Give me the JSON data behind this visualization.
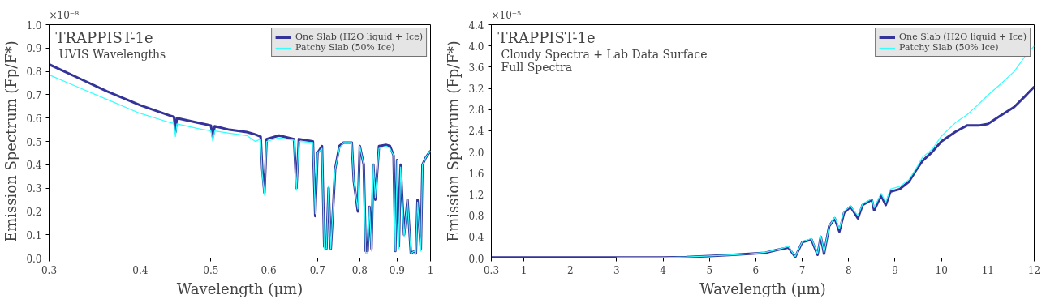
{
  "chart_data": [
    {
      "type": "line",
      "title": "TRAPPIST-1e",
      "subtitle": "UVIS Wavelengths",
      "xlabel": "Wavelength (µm)",
      "ylabel": "Emission Spectrum (Fp/F*)",
      "annotations": [
        "×10⁻⁸"
      ],
      "log": "x",
      "grid": false,
      "legend": "top right",
      "marker": "none",
      "line_style": "solid",
      "xlim": [
        0.3,
        1
      ],
      "xticks": [
        0.3,
        0.4,
        0.5,
        0.6,
        0.7,
        0.8,
        0.9,
        1
      ],
      "ylim": [
        0,
        1
      ],
      "yticks": [
        {
          "value": 0,
          "label": "0.0"
        },
        0.1,
        0.2,
        0.3,
        0.4,
        0.5,
        0.6,
        0.7,
        0.8,
        0.9,
        {
          "value": 1,
          "label": "1.0"
        }
      ],
      "x": [
        0.3,
        0.33,
        0.36,
        0.4,
        0.44,
        0.445,
        0.447,
        0.449,
        0.48,
        0.5,
        0.503,
        0.506,
        0.53,
        0.56,
        0.575,
        0.585,
        0.588,
        0.592,
        0.596,
        0.62,
        0.65,
        0.655,
        0.66,
        0.69,
        0.695,
        0.7,
        0.71,
        0.715,
        0.72,
        0.725,
        0.73,
        0.735,
        0.74,
        0.75,
        0.76,
        0.78,
        0.785,
        0.795,
        0.8,
        0.81,
        0.815,
        0.82,
        0.825,
        0.83,
        0.835,
        0.84,
        0.85,
        0.87,
        0.88,
        0.89,
        0.895,
        0.9,
        0.905,
        0.91,
        0.92,
        0.93,
        0.94,
        0.95,
        0.955,
        0.96,
        0.97,
        0.975,
        0.985,
        1.0
      ],
      "series": [
        {
          "name": "One Slab (H2O liquid + Ice)",
          "color": "#333399",
          "values": [
            0.83,
            0.77,
            0.715,
            0.655,
            0.61,
            0.605,
            0.54,
            0.6,
            0.58,
            0.568,
            0.52,
            0.565,
            0.55,
            0.54,
            0.53,
            0.52,
            0.38,
            0.28,
            0.51,
            0.525,
            0.51,
            0.3,
            0.51,
            0.5,
            0.18,
            0.45,
            0.48,
            0.05,
            0.04,
            0.3,
            0.04,
            0.2,
            0.38,
            0.48,
            0.495,
            0.495,
            0.33,
            0.2,
            0.48,
            0.4,
            0.03,
            0.03,
            0.22,
            0.04,
            0.4,
            0.25,
            0.48,
            0.485,
            0.48,
            0.44,
            0.03,
            0.42,
            0.05,
            0.4,
            0.1,
            0.25,
            0.02,
            0.03,
            0.02,
            0.25,
            0.04,
            0.4,
            0.43,
            0.46
          ]
        },
        {
          "name": "Patchy Slab (50% Ice)",
          "color": "#33ffff",
          "values": [
            0.785,
            0.73,
            0.68,
            0.62,
            0.58,
            0.578,
            0.52,
            0.575,
            0.555,
            0.545,
            0.5,
            0.545,
            0.535,
            0.525,
            0.5,
            0.51,
            0.36,
            0.27,
            0.5,
            0.515,
            0.505,
            0.29,
            0.5,
            0.495,
            0.19,
            0.45,
            0.47,
            0.04,
            0.04,
            0.31,
            0.04,
            0.21,
            0.38,
            0.47,
            0.495,
            0.495,
            0.33,
            0.21,
            0.48,
            0.4,
            0.02,
            0.02,
            0.22,
            0.03,
            0.4,
            0.26,
            0.47,
            0.48,
            0.47,
            0.44,
            0.03,
            0.42,
            0.04,
            0.39,
            0.09,
            0.25,
            0.02,
            0.03,
            0.02,
            0.24,
            0.03,
            0.4,
            0.43,
            0.46
          ]
        }
      ]
    },
    {
      "type": "line",
      "title": "TRAPPIST-1e",
      "subtitle": "Cloudy Spectra + Lab Data Surface",
      "xlabel": "Wavelength (µm)",
      "ylabel": "Emission Spectrum (Fp/F*)",
      "annotations": [
        "Full Spectra",
        "×10⁻⁵"
      ],
      "grid": false,
      "legend": "top right",
      "marker": "none",
      "line_style": "solid",
      "xlim": [
        0.3,
        12
      ],
      "xticks": [
        0.3,
        1,
        2,
        3,
        4,
        5,
        6,
        7,
        8,
        9,
        10,
        11,
        12
      ],
      "ylim": [
        0,
        4.4
      ],
      "yticks": [
        {
          "value": 0,
          "label": "0.0"
        },
        0.4,
        0.8,
        1.2,
        1.6,
        {
          "value": 2,
          "label": "2.0"
        },
        2.4,
        2.8,
        3.2,
        3.6,
        {
          "value": 4,
          "label": "4.0"
        },
        4.4
      ],
      "x": [
        0.3,
        1,
        2,
        3,
        4,
        4.5,
        5,
        5.5,
        5.86,
        6.2,
        6.43,
        6.7,
        6.85,
        7.0,
        7.2,
        7.33,
        7.4,
        7.47,
        7.58,
        7.7,
        7.8,
        7.9,
        8.04,
        8.2,
        8.3,
        8.5,
        8.55,
        8.7,
        8.8,
        8.9,
        9.1,
        9.3,
        9.45,
        9.59,
        9.8,
        10.0,
        10.3,
        10.55,
        10.8,
        11.0,
        11.3,
        11.57,
        11.8,
        12.0
      ],
      "series": [
        {
          "name": "One Slab (H2O liquid + Ice)",
          "color": "#333399",
          "values": [
            0.01,
            0.01,
            0.01,
            0.01,
            0.01,
            0.02,
            0.04,
            0.06,
            0.08,
            0.1,
            0.15,
            0.2,
            0.02,
            0.3,
            0.35,
            0.06,
            0.4,
            0.08,
            0.6,
            0.75,
            0.5,
            0.85,
            0.97,
            0.75,
            1.0,
            1.1,
            0.9,
            1.18,
            1.0,
            1.25,
            1.3,
            1.44,
            1.65,
            1.83,
            2.0,
            2.2,
            2.38,
            2.5,
            2.5,
            2.53,
            2.7,
            2.85,
            3.05,
            3.23
          ]
        },
        {
          "name": "Patchy Slab (50% Ice)",
          "color": "#33ffff",
          "values": [
            null,
            null,
            null,
            0.01,
            0.01,
            0.02,
            0.04,
            0.06,
            0.08,
            0.11,
            0.15,
            0.22,
            0.03,
            0.31,
            0.37,
            0.08,
            0.42,
            0.1,
            0.6,
            0.77,
            0.55,
            0.88,
            0.98,
            0.8,
            1.02,
            1.12,
            0.95,
            1.22,
            1.05,
            1.3,
            1.35,
            1.48,
            1.68,
            1.9,
            2.05,
            2.3,
            2.55,
            2.7,
            2.9,
            3.07,
            3.3,
            3.52,
            3.8,
            4.0
          ]
        }
      ]
    }
  ]
}
